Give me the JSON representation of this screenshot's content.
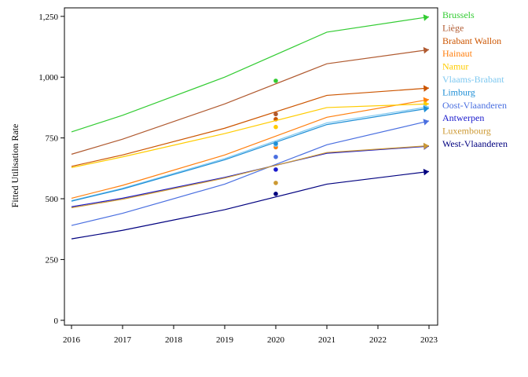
{
  "chart_data": {
    "type": "line",
    "title": "",
    "xlabel": "",
    "ylabel": "Fitted Utilisation Rate",
    "x": [
      2016,
      2017,
      2018,
      2019,
      2020,
      2021,
      2022,
      2023
    ],
    "x_tick_labels": [
      "2016",
      "2017",
      "2018",
      "2019",
      "2020",
      "2021",
      "2022",
      "2023"
    ],
    "ylim": [
      -20,
      1285
    ],
    "y_ticks": [
      0,
      250,
      500,
      750,
      1000,
      1250
    ],
    "y_tick_labels": [
      "0",
      "250",
      "500",
      "750",
      "1,000",
      "1,250"
    ],
    "grid": false,
    "legend": "right, labels at line ends",
    "series": [
      {
        "name": "Brussels",
        "color": "#33cc33",
        "x": [
          2016,
          2017,
          2019,
          2021,
          2023
        ],
        "values": [
          775,
          843,
          1000,
          1185,
          1248
        ],
        "point_2020": 985
      },
      {
        "name": "Liège",
        "color": "#b05a30",
        "x": [
          2016,
          2017,
          2019,
          2021,
          2023
        ],
        "values": [
          683,
          745,
          890,
          1055,
          1113
        ],
        "point_2020": 848
      },
      {
        "name": "Brabant Wallon",
        "color": "#cc5500",
        "x": [
          2016,
          2017,
          2019,
          2021,
          2023
        ],
        "values": [
          633,
          680,
          790,
          925,
          955
        ],
        "point_2020": 827
      },
      {
        "name": "Hainaut",
        "color": "#ff7f0e",
        "x": [
          2016,
          2017,
          2019,
          2021,
          2023
        ],
        "values": [
          502,
          555,
          680,
          835,
          908
        ],
        "point_2020": 712
      },
      {
        "name": "Namur",
        "color": "#ffcc00",
        "x": [
          2016,
          2017,
          2019,
          2021,
          2023
        ],
        "values": [
          628,
          672,
          768,
          875,
          890
        ],
        "point_2020": 795
      },
      {
        "name": "Vlaams-Brabant",
        "color": "#7ec8f0",
        "x": [
          2016,
          2017,
          2019,
          2021,
          2023
        ],
        "values": [
          492,
          543,
          665,
          812,
          878
        ],
        "point_2020": 722
      },
      {
        "name": "Limburg",
        "color": "#1f8fd6",
        "x": [
          2016,
          2017,
          2019,
          2021,
          2023
        ],
        "values": [
          490,
          540,
          660,
          805,
          872
        ],
        "point_2020": 727
      },
      {
        "name": "Oost-Vlaanderen",
        "color": "#4a6fe0",
        "x": [
          2016,
          2017,
          2019,
          2021,
          2023
        ],
        "values": [
          390,
          440,
          560,
          722,
          820
        ],
        "point_2020": 672
      },
      {
        "name": "Antwerpen",
        "color": "#1a1acc",
        "x": [
          2016,
          2017,
          2019,
          2021,
          2023
        ],
        "values": [
          467,
          502,
          588,
          687,
          716
        ],
        "point_2020": 620
      },
      {
        "name": "Luxembourg",
        "color": "#cc9933",
        "x": [
          2016,
          2017,
          2019,
          2021,
          2023
        ],
        "values": [
          463,
          498,
          585,
          690,
          718
        ],
        "point_2020": 565
      },
      {
        "name": "West-Vlaanderen",
        "color": "#00007f",
        "x": [
          2016,
          2017,
          2019,
          2021,
          2023
        ],
        "values": [
          335,
          370,
          455,
          560,
          612
        ],
        "point_2020": 520
      }
    ]
  }
}
